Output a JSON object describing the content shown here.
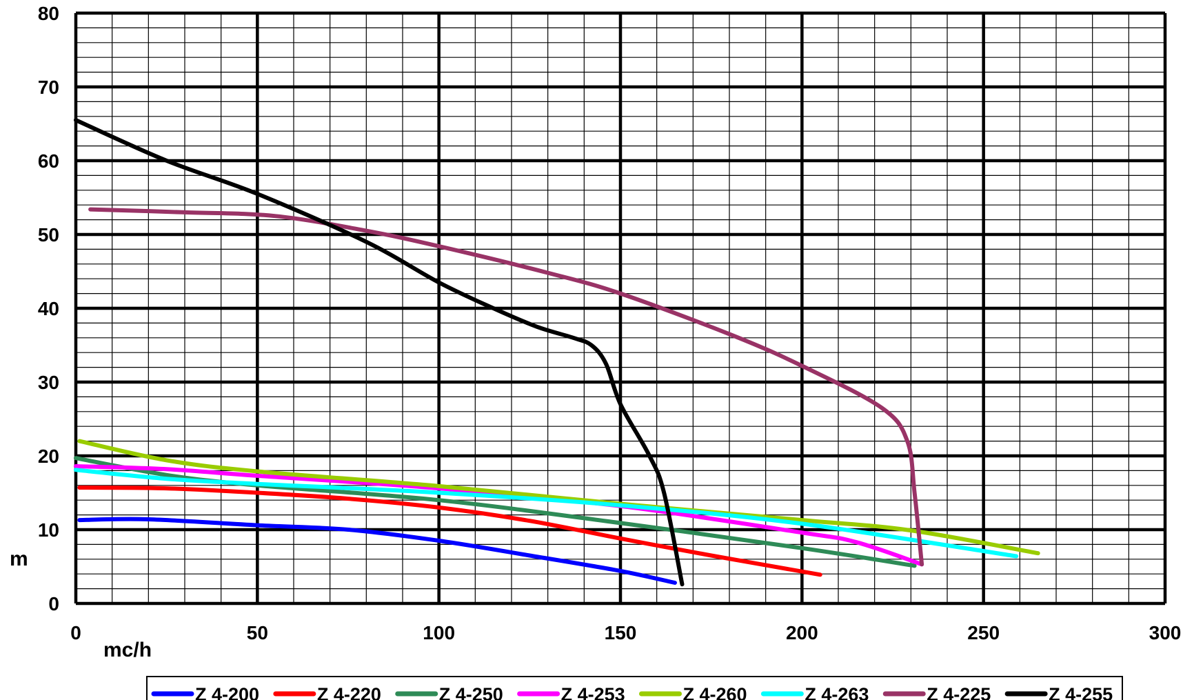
{
  "chart_data": {
    "type": "line",
    "title": "",
    "xlabel": "mc/h",
    "ylabel": "m",
    "xlim": [
      0,
      300
    ],
    "ylim": [
      0,
      80
    ],
    "x_major_step": 50,
    "y_major_step": 10,
    "x_minor_step": 10,
    "y_minor_step": 2,
    "grid": true,
    "legend_position": "bottom",
    "x_ticks": [
      "0",
      "50",
      "100",
      "150",
      "200",
      "250",
      "300"
    ],
    "y_ticks": [
      "0",
      "10",
      "20",
      "30",
      "40",
      "50",
      "60",
      "70",
      "80"
    ],
    "series": [
      {
        "name": "Z 4-200",
        "color": "#0000ff",
        "x": [
          1,
          20,
          50,
          75,
          100,
          125,
          150,
          165
        ],
        "y": [
          11.3,
          11.4,
          10.6,
          10.0,
          8.5,
          6.5,
          4.4,
          2.8
        ]
      },
      {
        "name": "Z 4-220",
        "color": "#ff0000",
        "x": [
          1,
          25,
          50,
          75,
          100,
          125,
          150,
          175,
          205
        ],
        "y": [
          15.7,
          15.6,
          15.0,
          14.2,
          13.0,
          11.2,
          8.8,
          6.5,
          3.9
        ]
      },
      {
        "name": "Z 4-250",
        "color": "#2e8b57",
        "x": [
          0,
          25,
          50,
          100,
          150,
          200,
          231
        ],
        "y": [
          19.7,
          17.4,
          16.0,
          14.0,
          10.9,
          7.5,
          5.1
        ]
      },
      {
        "name": "Z 4-253",
        "color": "#ff00ff",
        "x": [
          0,
          25,
          50,
          100,
          150,
          200,
          215,
          233
        ],
        "y": [
          18.6,
          18.2,
          17.3,
          15.6,
          13.2,
          9.6,
          8.3,
          5.3
        ]
      },
      {
        "name": "Z 4-260",
        "color": "#99cc00",
        "x": [
          1,
          25,
          50,
          100,
          150,
          200,
          230,
          265
        ],
        "y": [
          22.0,
          19.4,
          17.9,
          15.9,
          13.5,
          11.3,
          9.9,
          6.8
        ]
      },
      {
        "name": "Z 4-263",
        "color": "#00ffff",
        "x": [
          0,
          25,
          50,
          100,
          150,
          200,
          259
        ],
        "y": [
          18.1,
          16.9,
          16.2,
          15.0,
          13.3,
          10.8,
          6.4
        ]
      },
      {
        "name": "Z 4-225",
        "color": "#993366",
        "x": [
          4,
          30,
          55,
          80,
          100,
          130,
          150,
          180,
          200,
          222,
          229,
          231,
          233
        ],
        "y": [
          53.4,
          53.0,
          52.5,
          50.5,
          48.4,
          44.8,
          42.0,
          36.5,
          32.2,
          26.5,
          22.0,
          15.0,
          5.3
        ]
      },
      {
        "name": "Z 4-255",
        "color": "#000000",
        "x": [
          0,
          25,
          50,
          80,
          100,
          115,
          127,
          137,
          142,
          146,
          150,
          158,
          162,
          167
        ],
        "y": [
          65.5,
          60.0,
          55.5,
          49.0,
          43.5,
          40.0,
          37.5,
          36.0,
          35.0,
          32.5,
          27.0,
          20.0,
          15.0,
          2.6
        ]
      }
    ]
  }
}
